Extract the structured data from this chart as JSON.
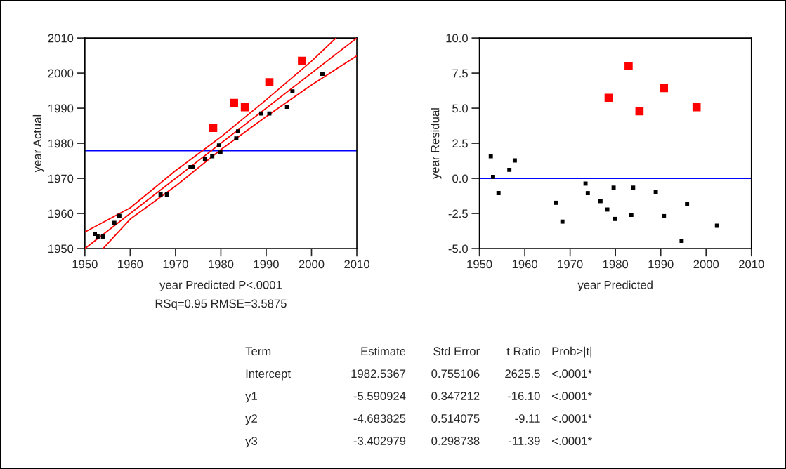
{
  "chart_data": [
    {
      "type": "scatter",
      "xlabel": "year Predicted P<.0001",
      "ylabel": "year Actual",
      "annotations": [
        "RSq=0.95 RMSE=3.5875"
      ],
      "xlim": [
        1950,
        2010
      ],
      "ylim": [
        1950,
        2010
      ],
      "xticks": [
        1950,
        1960,
        1970,
        1980,
        1990,
        2000,
        2010
      ],
      "yticks": [
        1950,
        1960,
        1970,
        1980,
        1990,
        2000,
        2010
      ],
      "grid": false,
      "legend": false,
      "ref_lines": [
        {
          "axis": "y",
          "value": 1977.9,
          "color": "#0000ff"
        }
      ],
      "series": [
        {
          "type": "line",
          "color": "#ff0000",
          "x": [
            1950,
            2010
          ],
          "values": [
            1950,
            2010
          ]
        },
        {
          "type": "line",
          "color": "#ff0000",
          "x": [
            1950,
            1960,
            1970,
            1980,
            1990,
            2000,
            2005.4
          ],
          "values": [
            1954.7,
            1961.6,
            1972.2,
            1981.8,
            1992.4,
            2003.4,
            2010
          ]
        },
        {
          "type": "line",
          "color": "#ff0000",
          "x": [
            1954.0,
            1960,
            1970,
            1980,
            1990,
            2000,
            2010
          ],
          "values": [
            1950,
            1958.4,
            1967.8,
            1978.2,
            1987.6,
            1996.6,
            2004.9
          ]
        },
        {
          "type": "scatter",
          "marker": "square",
          "color": "#000000",
          "x": [
            1952.2,
            1952.8,
            1954.0,
            1956.5,
            1957.6,
            1966.7,
            1968.1,
            1973.3,
            1973.9,
            1976.5,
            1978.1,
            1979.6,
            1979.9,
            1983.4,
            1983.8,
            1988.9,
            1990.7,
            1994.6,
            1995.8,
            2002.4
          ],
          "values": [
            1954.2,
            1953.4,
            1953.4,
            1957.3,
            1959.3,
            1965.4,
            1965.4,
            1973.2,
            1973.2,
            1975.5,
            1976.3,
            1979.4,
            1977.5,
            1981.4,
            1983.4,
            1988.5,
            1988.5,
            1990.4,
            1994.8,
            1999.8
          ]
        },
        {
          "type": "scatter",
          "marker": "square",
          "color": "#ff0000",
          "x": [
            1978.3,
            1982.9,
            1985.3,
            1990.7,
            1997.9
          ],
          "values": [
            1984.4,
            1991.5,
            1990.3,
            1997.4,
            2003.5
          ]
        }
      ]
    },
    {
      "type": "scatter",
      "xlabel": "year Predicted",
      "ylabel": "year Residual",
      "xlim": [
        1950,
        2010
      ],
      "ylim": [
        -5,
        10
      ],
      "xticks": [
        1950,
        1960,
        1970,
        1980,
        1990,
        2000,
        2010
      ],
      "yticks": [
        {
          "value": -5,
          "label": "-5.0"
        },
        {
          "value": -2.5,
          "label": "-2.5"
        },
        {
          "value": 0,
          "label": "0.0"
        },
        {
          "value": 2.5,
          "label": "2.5"
        },
        {
          "value": 5,
          "label": "5.0"
        },
        {
          "value": 7.5,
          "label": "7.5"
        },
        {
          "value": 10,
          "label": "10.0"
        }
      ],
      "grid": false,
      "legend": false,
      "marker": "square",
      "ref_lines": [
        {
          "axis": "y",
          "value": 0,
          "color": "#0000ff"
        }
      ],
      "series": [
        {
          "type": "scatter",
          "color": "#000000",
          "x": [
            1952.5,
            1953.0,
            1954.2,
            1956.6,
            1957.8,
            1966.8,
            1968.3,
            1973.4,
            1973.9,
            1976.7,
            1978.2,
            1979.6,
            1979.9,
            1983.5,
            1983.9,
            1988.9,
            1990.7,
            1994.6,
            1995.8,
            2002.4
          ],
          "values": [
            1.58,
            0.11,
            -1.05,
            0.61,
            1.28,
            -1.74,
            -3.08,
            -0.37,
            -1.05,
            -1.62,
            -2.22,
            -0.66,
            -2.89,
            -2.6,
            -0.66,
            -0.96,
            -2.69,
            -4.45,
            -1.82,
            -3.37
          ]
        },
        {
          "type": "scatter",
          "color": "#ff0000",
          "x": [
            1978.5,
            1982.9,
            1985.3,
            1990.7,
            1997.9
          ],
          "values": [
            5.74,
            7.99,
            4.78,
            6.43,
            5.07
          ]
        }
      ]
    },
    {
      "type": "other",
      "annotations": [
        "Term",
        "Estimate",
        "Std Error",
        "t Ratio",
        "Prob>|t|",
        "Intercept",
        "1982.5367",
        "0.755106",
        "2625.5",
        "<.0001*",
        "y1",
        "-5.590924",
        "0.347212",
        "-16.10",
        "<.0001*",
        "y2",
        "-4.683825",
        "0.514075",
        "-9.11",
        "<.0001*",
        "y3",
        "-3.402979",
        "0.298738",
        "-11.39",
        "<.0001*"
      ]
    }
  ]
}
